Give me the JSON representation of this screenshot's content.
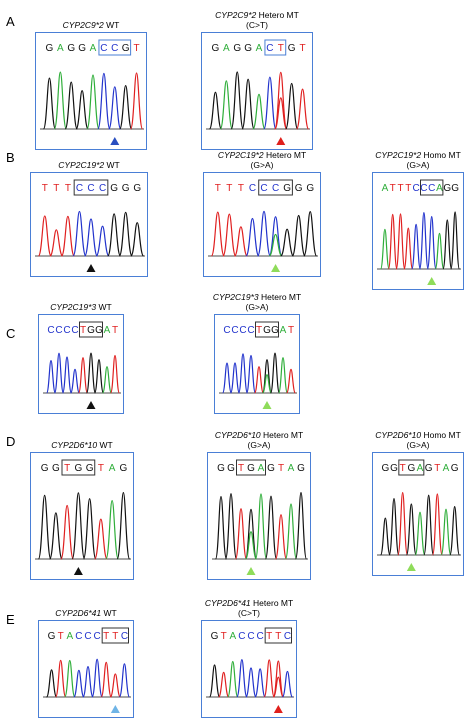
{
  "sections": [
    {
      "letter": "A",
      "panels": [
        {
          "gene": "CYP2C9*2",
          "label": "WT",
          "sub": "",
          "sequence": "GAGGACCGT",
          "box": [
            5,
            7
          ],
          "arrow": "blue"
        },
        {
          "gene": "CYP2C9*2",
          "label": "Hetero MT",
          "sub": "(C>T)",
          "sequence": "GAGGACTGT",
          "box": [
            5,
            6
          ],
          "arrow": "red"
        }
      ]
    },
    {
      "letter": "B",
      "panels": [
        {
          "gene": "CYP2C19*2",
          "label": "WT",
          "sub": "",
          "sequence": "TTTCCCGGG",
          "box": [
            3,
            5
          ],
          "arrow": "black"
        },
        {
          "gene": "CYP2C19*2",
          "label": "Hetero MT",
          "sub": "(G>A)",
          "sequence": "TTTCCCGGG",
          "box": [
            4,
            6
          ],
          "arrow": "green"
        },
        {
          "gene": "CYP2C19*2",
          "label": "Homo MT",
          "sub": "(G>A)",
          "sequence": "ATTTCCCAGG",
          "box": [
            5,
            7
          ],
          "arrow": "green"
        }
      ]
    },
    {
      "letter": "C",
      "panels": [
        {
          "gene": "CYP2C19*3",
          "label": "WT",
          "sub": "",
          "sequence": "CCCCTGGAT",
          "box": [
            4,
            6
          ],
          "arrow": "black"
        },
        {
          "gene": "CYP2C19*3",
          "label": "Hetero MT",
          "sub": "(G>A)",
          "sequence": "CCCCTGGAT",
          "box": [
            4,
            6
          ],
          "arrow": "green"
        }
      ]
    },
    {
      "letter": "D",
      "panels": [
        {
          "gene": "CYP2D6*10",
          "label": "WT",
          "sub": "",
          "sequence": "GGTGGTAG",
          "box": [
            2,
            4
          ],
          "arrow": "black"
        },
        {
          "gene": "CYP2D6*10",
          "label": "Hetero MT",
          "sub": "(G>A)",
          "sequence": "GGTGAGTAG",
          "box": [
            2,
            4
          ],
          "arrow": "green"
        },
        {
          "gene": "CYP2D6*10",
          "label": "Homo MT",
          "sub": "(G>A)",
          "sequence": "GGTGAGTAG",
          "box": [
            2,
            4
          ],
          "arrow": "green"
        }
      ]
    },
    {
      "letter": "E",
      "panels": [
        {
          "gene": "CYP2D6*41",
          "label": "WT",
          "sub": "",
          "sequence": "GTACCCTTC",
          "box": [
            6,
            8
          ],
          "arrow": "lightblue"
        },
        {
          "gene": "CYP2D6*41",
          "label": "Hetero MT",
          "sub": "(C>T)",
          "sequence": "GTACCCTTC",
          "box": [
            6,
            8
          ],
          "arrow": "red"
        }
      ]
    }
  ],
  "colors": {
    "A": "#2fae3a",
    "C": "#2233cc",
    "G": "#111111",
    "T": "#e02020",
    "frame": "#4a7fd6",
    "arrows": {
      "blue": "#2a4fc0",
      "red": "#e0201c",
      "black": "#111111",
      "green": "#8fdc5a",
      "lightblue": "#6fb4e6"
    }
  }
}
